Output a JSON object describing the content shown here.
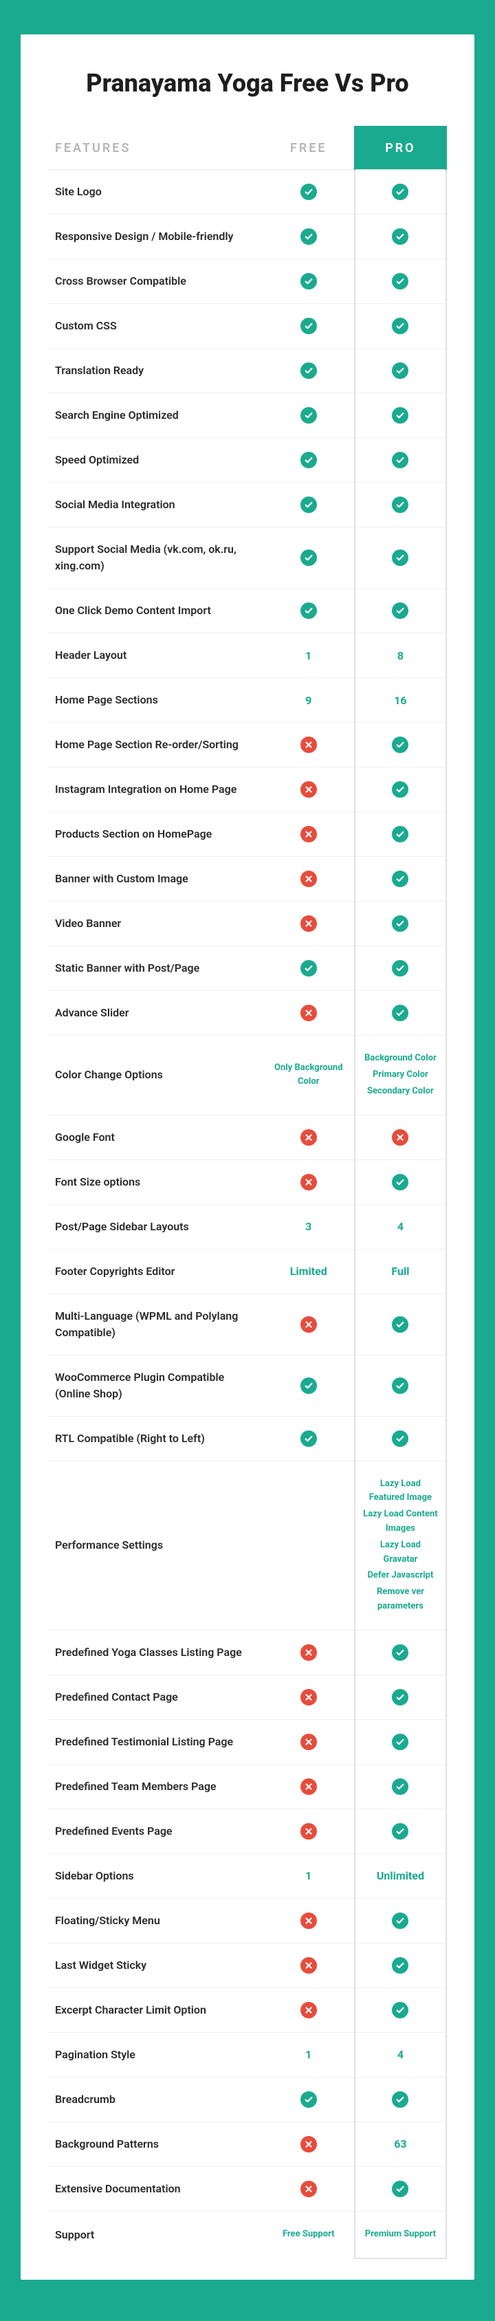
{
  "title": "Pranayama Yoga Free Vs Pro",
  "headers": {
    "features": "FEATURES",
    "free": "FREE",
    "pro": "PRO"
  },
  "colors": {
    "accent": "#1aaa8f",
    "accent_dark": "#138f78",
    "danger": "#e74c3c",
    "muted": "#b6b6b6",
    "text": "#2b2b2b",
    "highlight_bg": "#c6f0e7"
  },
  "rows": [
    {
      "feature": "Site Logo",
      "free": {
        "type": "check"
      },
      "pro": {
        "type": "check"
      }
    },
    {
      "feature": "Responsive Design / Mobile-friendly",
      "free": {
        "type": "check"
      },
      "pro": {
        "type": "check"
      }
    },
    {
      "feature": "Cross Browser Compatible",
      "free": {
        "type": "check"
      },
      "pro": {
        "type": "check"
      }
    },
    {
      "feature": "Custom CSS",
      "free": {
        "type": "check"
      },
      "pro": {
        "type": "check"
      }
    },
    {
      "feature": "Translation Ready",
      "free": {
        "type": "check"
      },
      "pro": {
        "type": "check"
      }
    },
    {
      "feature": "Search Engine Optimized",
      "free": {
        "type": "check"
      },
      "pro": {
        "type": "check"
      }
    },
    {
      "feature": "Speed Optimized",
      "free": {
        "type": "check"
      },
      "pro": {
        "type": "check"
      }
    },
    {
      "feature": "Social Media Integration",
      "free": {
        "type": "check"
      },
      "pro": {
        "type": "check"
      }
    },
    {
      "feature": "Support Social Media (vk.com, ok.ru, xing.com)",
      "free": {
        "type": "check"
      },
      "pro": {
        "type": "check"
      }
    },
    {
      "feature": "One Click Demo Content Import",
      "free": {
        "type": "check"
      },
      "pro": {
        "type": "check"
      }
    },
    {
      "feature": "Header Layout",
      "free": {
        "type": "text",
        "value": "1"
      },
      "pro": {
        "type": "text",
        "value": "8"
      }
    },
    {
      "feature": "Home Page Sections",
      "free": {
        "type": "text",
        "value": "9"
      },
      "pro": {
        "type": "text",
        "value": "16"
      }
    },
    {
      "feature": "Home Page Section Re-order/Sorting",
      "free": {
        "type": "cross"
      },
      "pro": {
        "type": "check"
      }
    },
    {
      "feature": "Instagram Integration on Home Page",
      "free": {
        "type": "cross"
      },
      "pro": {
        "type": "check"
      }
    },
    {
      "feature": "Products Section on HomePage",
      "free": {
        "type": "cross"
      },
      "pro": {
        "type": "check"
      }
    },
    {
      "feature": "Banner with Custom Image",
      "free": {
        "type": "cross"
      },
      "pro": {
        "type": "check"
      }
    },
    {
      "feature": "Video Banner",
      "free": {
        "type": "cross"
      },
      "pro": {
        "type": "check"
      }
    },
    {
      "feature": "Static Banner with Post/Page",
      "free": {
        "type": "check"
      },
      "pro": {
        "type": "check"
      }
    },
    {
      "feature": "Advance Slider",
      "free": {
        "type": "cross"
      },
      "pro": {
        "type": "check"
      }
    },
    {
      "feature": "Color Change Options",
      "free": {
        "type": "list",
        "items": [
          "Only Background Color"
        ]
      },
      "pro": {
        "type": "list",
        "items": [
          "Background Color",
          "Primary Color",
          "Secondary Color"
        ]
      }
    },
    {
      "feature": "Google Font",
      "free": {
        "type": "cross"
      },
      "pro": {
        "type": "cross"
      }
    },
    {
      "feature": "Font Size options",
      "free": {
        "type": "cross"
      },
      "pro": {
        "type": "check"
      }
    },
    {
      "feature": "Post/Page Sidebar Layouts",
      "free": {
        "type": "text",
        "value": "3"
      },
      "pro": {
        "type": "text",
        "value": "4"
      }
    },
    {
      "feature": "Footer Copyrights Editor",
      "free": {
        "type": "text",
        "value": "Limited"
      },
      "pro": {
        "type": "text",
        "value": "Full"
      }
    },
    {
      "feature": "Multi-Language (WPML and Polylang Compatible)",
      "free": {
        "type": "cross"
      },
      "pro": {
        "type": "check"
      }
    },
    {
      "feature": "WooCommerce Plugin Compatible (Online Shop)",
      "free": {
        "type": "check"
      },
      "pro": {
        "type": "check"
      }
    },
    {
      "feature": "RTL Compatible (Right to Left)",
      "free": {
        "type": "check"
      },
      "pro": {
        "type": "check"
      }
    },
    {
      "feature": "Performance Settings",
      "free": {
        "type": "blank"
      },
      "pro": {
        "type": "list",
        "items": [
          "Lazy Load Featured Image",
          "Lazy Load Content Images",
          "Lazy Load Gravatar",
          "Defer Javascript",
          "Remove ver parameters"
        ]
      }
    },
    {
      "feature": "Predefined Yoga Classes Listing Page",
      "free": {
        "type": "cross"
      },
      "pro": {
        "type": "check"
      }
    },
    {
      "feature": "Predefined Contact Page",
      "free": {
        "type": "cross"
      },
      "pro": {
        "type": "check"
      }
    },
    {
      "feature": "Predefined Testimonial Listing Page",
      "free": {
        "type": "cross"
      },
      "pro": {
        "type": "check"
      }
    },
    {
      "feature": "Predefined Team Members Page",
      "free": {
        "type": "cross"
      },
      "pro": {
        "type": "check"
      }
    },
    {
      "feature": "Predefined Events Page",
      "free": {
        "type": "cross"
      },
      "pro": {
        "type": "check"
      }
    },
    {
      "feature": "Sidebar Options",
      "free": {
        "type": "text",
        "value": "1"
      },
      "pro": {
        "type": "text",
        "value": "Unlimited"
      }
    },
    {
      "feature": "Floating/Sticky Menu",
      "free": {
        "type": "cross"
      },
      "pro": {
        "type": "check"
      }
    },
    {
      "feature": "Last Widget Sticky",
      "free": {
        "type": "cross"
      },
      "pro": {
        "type": "check"
      }
    },
    {
      "feature": "Excerpt Character Limit Option",
      "free": {
        "type": "cross"
      },
      "pro": {
        "type": "check"
      }
    },
    {
      "feature": "Pagination Style",
      "free": {
        "type": "text",
        "value": "1"
      },
      "pro": {
        "type": "text",
        "value": "4"
      }
    },
    {
      "feature": "Breadcrumb",
      "free": {
        "type": "check"
      },
      "pro": {
        "type": "check"
      }
    },
    {
      "feature": "Background Patterns",
      "free": {
        "type": "cross"
      },
      "pro": {
        "type": "text",
        "value": "63"
      }
    },
    {
      "feature": "Extensive Documentation",
      "free": {
        "type": "cross"
      },
      "pro": {
        "type": "check"
      }
    },
    {
      "feature": "Support",
      "free": {
        "type": "list",
        "items": [
          "Free Support"
        ]
      },
      "pro": {
        "type": "list",
        "items": [
          "Premium Support"
        ]
      }
    }
  ]
}
